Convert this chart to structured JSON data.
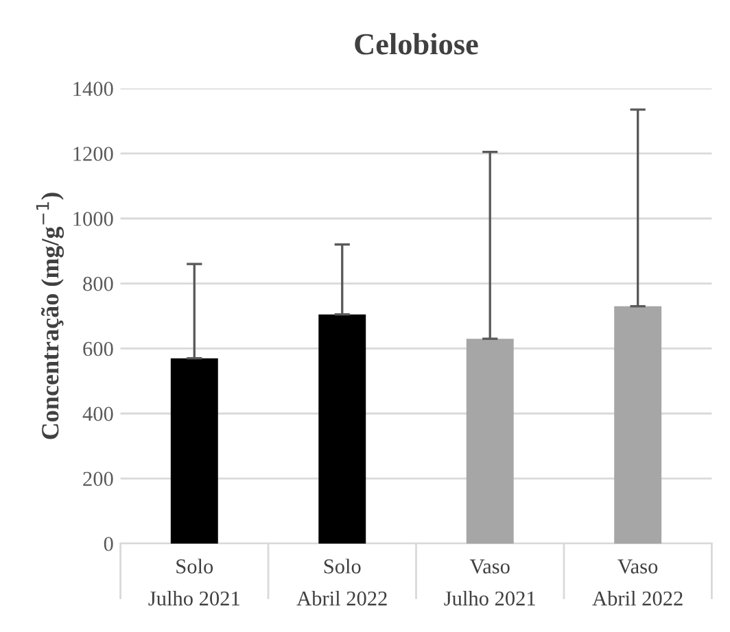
{
  "chart_data": {
    "type": "bar",
    "title": "Celobiose",
    "ylabel": "Concentração (mg/g$^{−1}$)",
    "categories": [
      "Solo\nJulho 2021",
      "Solo\nAbril 2022",
      "Vaso\nJulho 2021",
      "Vaso\nAbril 2022"
    ],
    "values": [
      570,
      705,
      630,
      730
    ],
    "colors": [
      "#000000",
      "#000000",
      "#a6a6a6",
      "#a6a6a6"
    ],
    "errors": [
      [
        570,
        860
      ],
      [
        705,
        920
      ],
      [
        630,
        1205
      ],
      [
        730,
        1335
      ]
    ],
    "ylim": [
      0,
      1400
    ],
    "yticks": [
      0,
      200,
      400,
      600,
      800,
      1000,
      1200,
      1400
    ],
    "grid": "y",
    "legend": false
  }
}
